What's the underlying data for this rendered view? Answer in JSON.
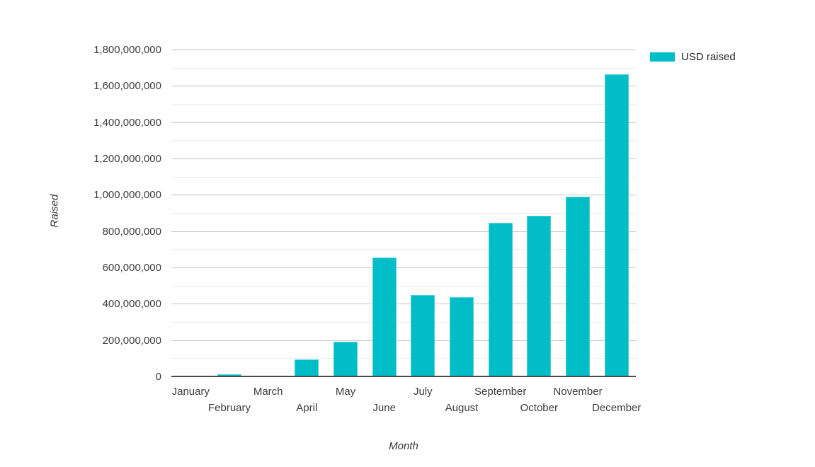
{
  "colors": {
    "bar": "#00bdc7",
    "major_gridline": "#c3c3c3",
    "minor_gridline": "#ececec",
    "baseline": "#4d4d4d",
    "text": "#3d3d3d",
    "background": "#ffffff"
  },
  "chart_data": {
    "type": "bar",
    "title": "",
    "xlabel": "Month",
    "ylabel": "Raised",
    "categories": [
      "January",
      "February",
      "March",
      "April",
      "May",
      "June",
      "July",
      "August",
      "September",
      "October",
      "November",
      "December"
    ],
    "series": [
      {
        "name": "USD raised",
        "color": "#00bdc7",
        "values": [
          2000000,
          11000000,
          6000000,
          95000000,
          192000000,
          654000000,
          450000000,
          438000000,
          845000000,
          884000000,
          990000000,
          1665000000
        ]
      }
    ],
    "ylim": [
      0,
      1800000000
    ],
    "y_major_step": 200000000,
    "y_minor_step": 100000000,
    "y_tick_labels": [
      "0",
      "200,000,000",
      "400,000,000",
      "600,000,000",
      "800,000,000",
      "1,000,000,000",
      "1,200,000,000",
      "1,400,000,000",
      "1,600,000,000",
      "1,800,000,000"
    ],
    "grid": true,
    "legend_position": "top-right",
    "legend": {
      "label": "USD raised"
    }
  }
}
